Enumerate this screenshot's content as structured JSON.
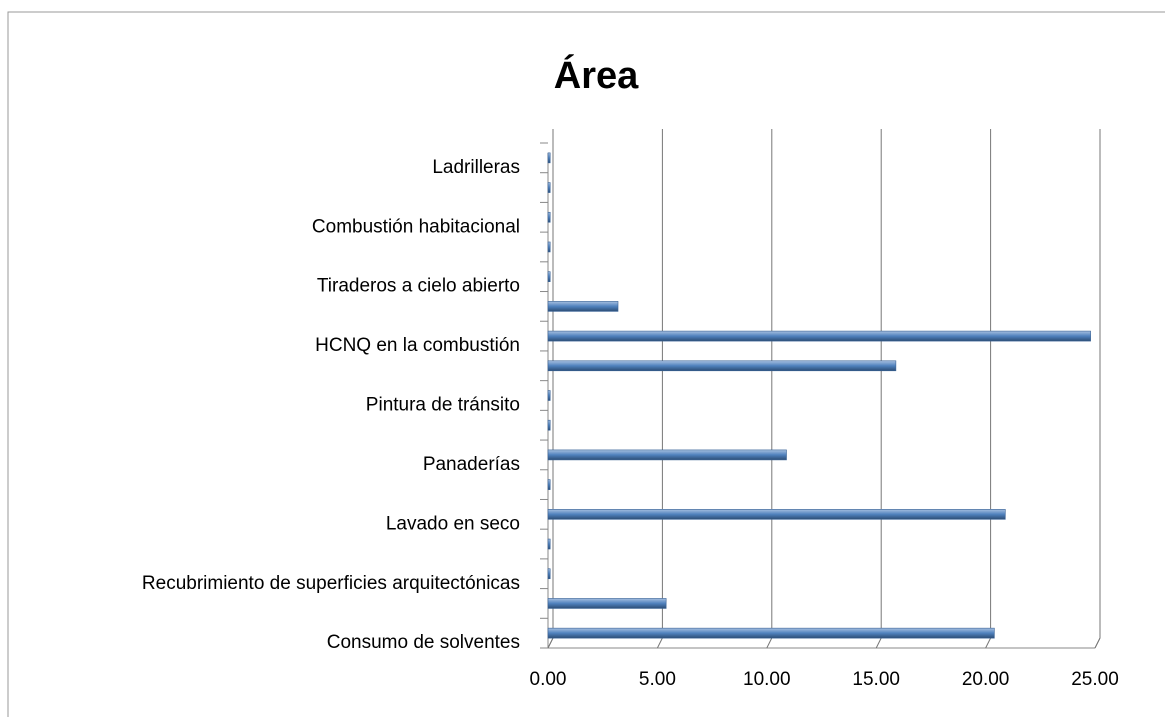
{
  "chart_data": {
    "type": "bar",
    "orientation": "horizontal",
    "title": "Área",
    "categories": [
      "Consumo de solventes",
      null,
      "Recubrimiento de superficies arquitectónicas",
      null,
      "Lavado en seco",
      null,
      "Panaderías",
      null,
      "Pintura de tránsito",
      null,
      "HCNQ en la combustión",
      null,
      "Tiraderos a cielo abierto",
      null,
      "Combustión habitacional",
      null,
      "Ladrilleras"
    ],
    "values": [
      20.4,
      5.4,
      0.1,
      0.1,
      20.9,
      0.1,
      10.9,
      0.1,
      0.1,
      15.9,
      24.8,
      3.2,
      0.1,
      0.1,
      0.1,
      0.1,
      0.1
    ],
    "color": "#4f81bd",
    "xlim": [
      0,
      25
    ],
    "xticks": [
      {
        "value": 0,
        "label": "0.00"
      },
      {
        "value": 5,
        "label": "5.00"
      },
      {
        "value": 10,
        "label": "10.00"
      },
      {
        "value": 15,
        "label": "15.00"
      },
      {
        "value": 20,
        "label": "20.00"
      },
      {
        "value": 25,
        "label": "25.00"
      }
    ],
    "grid": true
  }
}
